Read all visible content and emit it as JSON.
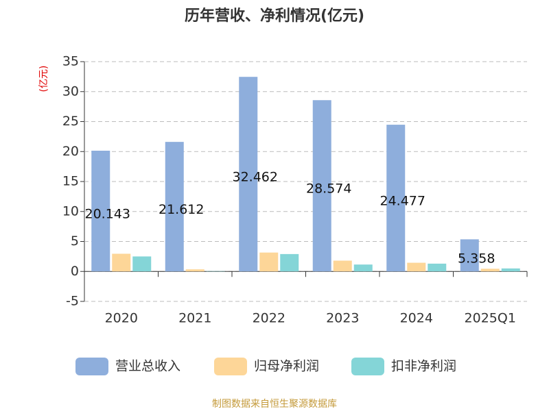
{
  "chart_data": {
    "type": "bar",
    "title": "历年营收、净利情况(亿元)",
    "y_label": "(亿元)",
    "categories": [
      "2020",
      "2021",
      "2022",
      "2023",
      "2024",
      "2025Q1"
    ],
    "series": [
      {
        "name": "营业总收入",
        "color": "#8eaedc",
        "values": [
          20.143,
          21.612,
          32.462,
          28.574,
          24.477,
          5.358
        ]
      },
      {
        "name": "归母净利润",
        "color": "#fdd698",
        "values": [
          2.95,
          0.35,
          3.15,
          1.8,
          1.45,
          0.45
        ]
      },
      {
        "name": "扣非净利润",
        "color": "#84d5d7",
        "values": [
          2.5,
          0.05,
          2.9,
          1.15,
          1.3,
          0.5
        ]
      }
    ],
    "ylim": [
      -5,
      35
    ],
    "yticks": [
      -5,
      0,
      5,
      10,
      15,
      20,
      25,
      30,
      35
    ],
    "grid": true,
    "source": "制图数据来自恒生聚源数据库"
  }
}
